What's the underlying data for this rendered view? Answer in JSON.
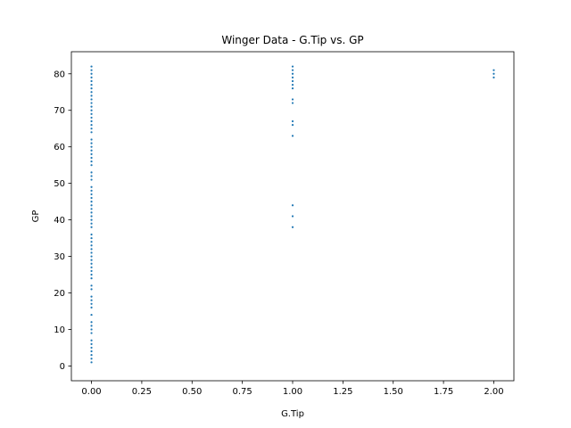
{
  "chart_data": {
    "type": "scatter",
    "title": "Winger Data - G.Tip vs. GP",
    "xlabel": "G.Tip",
    "ylabel": "GP",
    "xlim": [
      -0.1,
      2.1
    ],
    "ylim": [
      -4.05,
      86.05
    ],
    "xticks": [
      0.0,
      0.25,
      0.5,
      0.75,
      1.0,
      1.25,
      1.5,
      1.75,
      2.0
    ],
    "xtick_labels": [
      "0.00",
      "0.25",
      "0.50",
      "0.75",
      "1.00",
      "1.25",
      "1.50",
      "1.75",
      "2.00"
    ],
    "yticks": [
      0,
      10,
      20,
      30,
      40,
      50,
      60,
      70,
      80
    ],
    "ytick_labels": [
      "0",
      "10",
      "20",
      "30",
      "40",
      "50",
      "60",
      "70",
      "80"
    ],
    "grid": false,
    "marker_color": "#1f77b4",
    "series": [
      {
        "points": [
          [
            0,
            1
          ],
          [
            0,
            2
          ],
          [
            0,
            3
          ],
          [
            0,
            4
          ],
          [
            0,
            5
          ],
          [
            0,
            6
          ],
          [
            0,
            7
          ],
          [
            0,
            9
          ],
          [
            0,
            10
          ],
          [
            0,
            11
          ],
          [
            0,
            12
          ],
          [
            0,
            14
          ],
          [
            0,
            16
          ],
          [
            0,
            17
          ],
          [
            0,
            18
          ],
          [
            0,
            19
          ],
          [
            0,
            21
          ],
          [
            0,
            22
          ],
          [
            0,
            24
          ],
          [
            0,
            25
          ],
          [
            0,
            26
          ],
          [
            0,
            27
          ],
          [
            0,
            28
          ],
          [
            0,
            29
          ],
          [
            0,
            30
          ],
          [
            0,
            31
          ],
          [
            0,
            32
          ],
          [
            0,
            33
          ],
          [
            0,
            34
          ],
          [
            0,
            35
          ],
          [
            0,
            36
          ],
          [
            0,
            38
          ],
          [
            0,
            39
          ],
          [
            0,
            40
          ],
          [
            0,
            41
          ],
          [
            0,
            42
          ],
          [
            0,
            43
          ],
          [
            0,
            44
          ],
          [
            0,
            45
          ],
          [
            0,
            46
          ],
          [
            0,
            47
          ],
          [
            0,
            48
          ],
          [
            0,
            49
          ],
          [
            0,
            51
          ],
          [
            0,
            52
          ],
          [
            0,
            53
          ],
          [
            0,
            55
          ],
          [
            0,
            56
          ],
          [
            0,
            57
          ],
          [
            0,
            58
          ],
          [
            0,
            59
          ],
          [
            0,
            60
          ],
          [
            0,
            61
          ],
          [
            0,
            62
          ],
          [
            0,
            64
          ],
          [
            0,
            65
          ],
          [
            0,
            66
          ],
          [
            0,
            67
          ],
          [
            0,
            68
          ],
          [
            0,
            69
          ],
          [
            0,
            70
          ],
          [
            0,
            71
          ],
          [
            0,
            72
          ],
          [
            0,
            73
          ],
          [
            0,
            74
          ],
          [
            0,
            75
          ],
          [
            0,
            76
          ],
          [
            0,
            77
          ],
          [
            0,
            78
          ],
          [
            0,
            79
          ],
          [
            0,
            80
          ],
          [
            0,
            81
          ],
          [
            0,
            82
          ],
          [
            1,
            38
          ],
          [
            1,
            41
          ],
          [
            1,
            44
          ],
          [
            1,
            63
          ],
          [
            1,
            66
          ],
          [
            1,
            67
          ],
          [
            1,
            72
          ],
          [
            1,
            73
          ],
          [
            1,
            76
          ],
          [
            1,
            77
          ],
          [
            1,
            78
          ],
          [
            1,
            79
          ],
          [
            1,
            80
          ],
          [
            1,
            81
          ],
          [
            1,
            82
          ],
          [
            2,
            79
          ],
          [
            2,
            80
          ],
          [
            2,
            81
          ]
        ]
      }
    ]
  }
}
